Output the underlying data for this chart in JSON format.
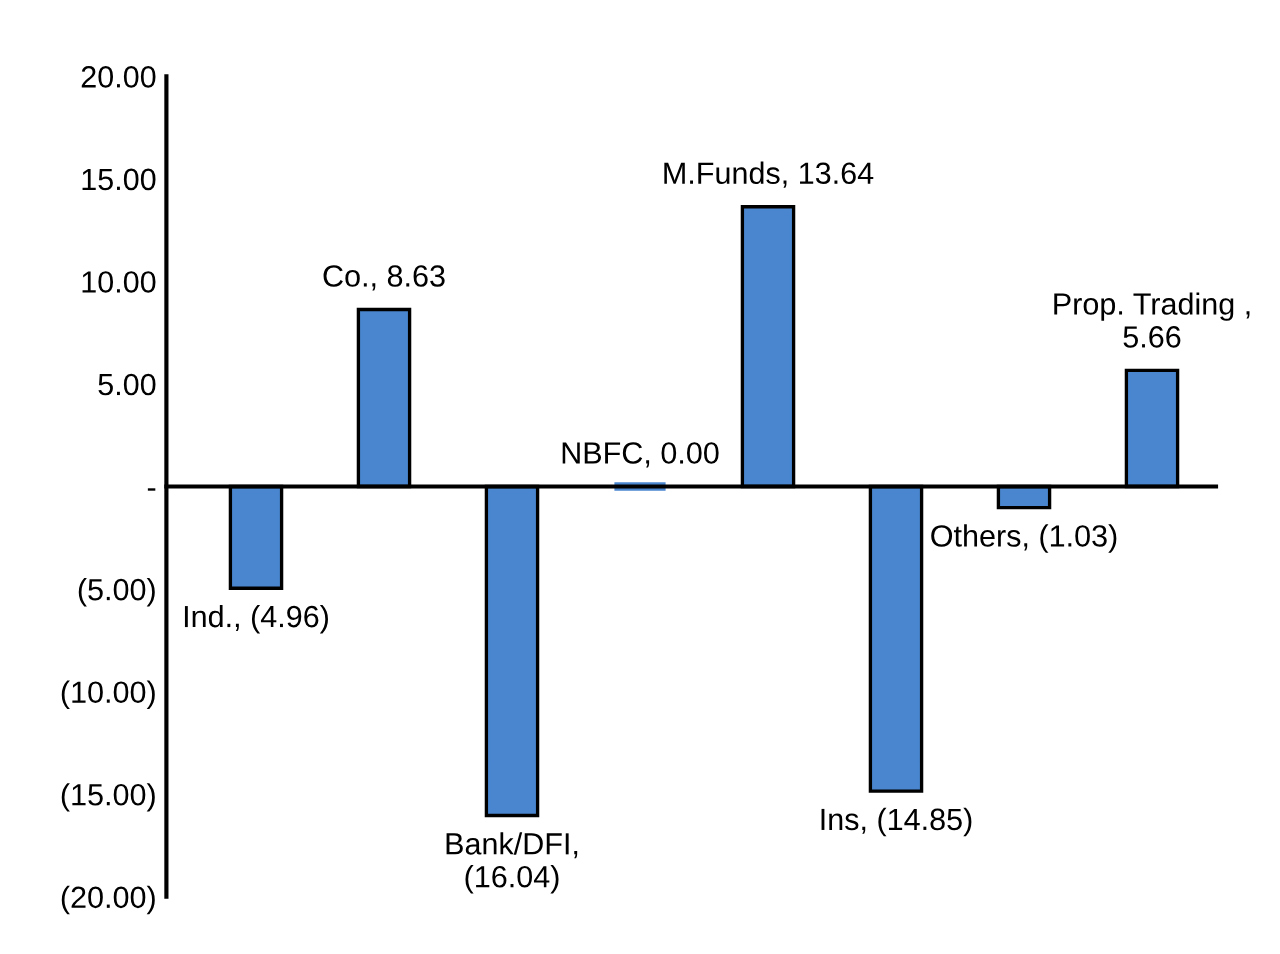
{
  "chart_data": {
    "type": "bar",
    "categories": [
      null,
      null,
      null,
      null,
      null,
      null,
      null,
      null
    ],
    "values": [
      -4.96,
      8.63,
      -16.04,
      0.0,
      13.64,
      -14.85,
      -1.03,
      5.66
    ],
    "value_labels": [
      "Ind., (4.96)",
      "Co., 8.63",
      "Bank/DFI,\n(16.04)",
      "NBFC, 0.00",
      "M.Funds, 13.64",
      "Ins, (14.85)",
      "Others, (1.03)",
      "Prop. Trading ,\n5.66"
    ],
    "color": "#4a86cf",
    "ylim": [
      -20,
      20
    ],
    "yticks": [
      {
        "value": 20,
        "label": "20.00"
      },
      {
        "value": 15,
        "label": "15.00"
      },
      {
        "value": 10,
        "label": "10.00"
      },
      {
        "value": 5,
        "label": "5.00"
      },
      {
        "value": 0,
        "label": "-"
      },
      {
        "value": -5,
        "label": "(5.00)"
      },
      {
        "value": -10,
        "label": "(10.00)"
      },
      {
        "value": -15,
        "label": "(15.00)"
      },
      {
        "value": -20,
        "label": "(20.00)"
      }
    ],
    "legend": false
  }
}
